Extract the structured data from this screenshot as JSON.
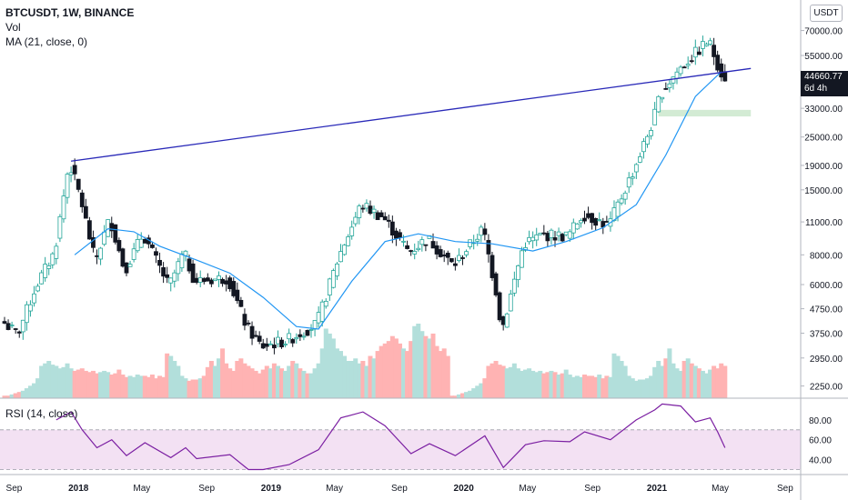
{
  "header": {
    "symbol_line": "BTCUSDT, 1W, BINANCE",
    "vol_label": "Vol",
    "ma_label": "MA (21, close, 0)"
  },
  "currency_button": "USDT",
  "last_price": {
    "value": "44660.77",
    "countdown": "6d 4h"
  },
  "rsi_label": "RSI (14, close)",
  "colors": {
    "up": "#26a69a",
    "down": "#ef5350",
    "ma": "#2196f3",
    "trendline": "#2929b8",
    "rsi": "#7b1fa2",
    "rsi_band": "#f3e1f3",
    "vol_up": "#b2dfdb",
    "vol_down": "#ffb3b3",
    "zone": "#c8e6c9"
  },
  "chart_data": [
    {
      "type": "candlestick",
      "title": "BTCUSDT, 1W, BINANCE",
      "y_scale": "log",
      "ylim": [
        2000,
        90000
      ],
      "price_ticks": [
        "70000.00",
        "55000.00",
        "44660.77",
        "33000.00",
        "25000.00",
        "19000.00",
        "15000.00",
        "11000.00",
        "8000.00",
        "6000.00",
        "4750.00",
        "3750.00",
        "2950.00",
        "2250.00"
      ],
      "time_ticks": [
        "Sep",
        "2018",
        "May",
        "Sep",
        "2019",
        "May",
        "Sep",
        "2020",
        "May",
        "Sep",
        "2021",
        "May",
        "Sep"
      ],
      "xlim": [
        "2017-08-14",
        "2021-09-27"
      ],
      "last_price": 44660.77,
      "moving_average": {
        "label": "MA (21, close, 0)",
        "points": [
          [
            "2017-12-25",
            8000
          ],
          [
            "2018-02-26",
            10300
          ],
          [
            "2018-04-16",
            10000
          ],
          [
            "2018-06-04",
            8700
          ],
          [
            "2018-08-13",
            7600
          ],
          [
            "2018-10-15",
            6700
          ],
          [
            "2018-12-17",
            5300
          ],
          [
            "2019-02-18",
            4000
          ],
          [
            "2019-04-01",
            3900
          ],
          [
            "2019-06-03",
            6200
          ],
          [
            "2019-08-05",
            9100
          ],
          [
            "2019-10-07",
            9800
          ],
          [
            "2019-12-16",
            9100
          ],
          [
            "2020-02-24",
            8900
          ],
          [
            "2020-05-11",
            8300
          ],
          [
            "2020-07-13",
            9100
          ],
          [
            "2020-09-21",
            10400
          ],
          [
            "2020-11-23",
            13000
          ],
          [
            "2021-01-18",
            21000
          ],
          [
            "2021-03-15",
            37000
          ],
          [
            "2021-05-03",
            47000
          ]
        ]
      },
      "trendline": {
        "start": [
          "2017-12-18",
          19800
        ],
        "end": [
          "2021-06-28",
          48500
        ]
      },
      "support_zone": {
        "from": "2021-01-04",
        "to": "2021-06-28",
        "low": 30500,
        "high": 32500
      },
      "price_path": [
        [
          "2017-08-14",
          4200
        ],
        [
          "2017-09-11",
          3700
        ],
        [
          "2017-10-16",
          5900
        ],
        [
          "2017-11-20",
          8200
        ],
        [
          "2017-12-18",
          19600
        ],
        [
          "2018-01-08",
          14000
        ],
        [
          "2018-02-05",
          7500
        ],
        [
          "2018-03-05",
          11400
        ],
        [
          "2018-04-02",
          6900
        ],
        [
          "2018-05-07",
          9800
        ],
        [
          "2018-06-25",
          5900
        ],
        [
          "2018-07-23",
          8200
        ],
        [
          "2018-08-13",
          6200
        ],
        [
          "2018-10-15",
          6400
        ],
        [
          "2018-11-19",
          4000
        ],
        [
          "2018-12-17",
          3300
        ],
        [
          "2019-02-04",
          3500
        ],
        [
          "2019-04-01",
          4100
        ],
        [
          "2019-05-13",
          7900
        ],
        [
          "2019-06-24",
          13000
        ],
        [
          "2019-08-05",
          11500
        ],
        [
          "2019-09-23",
          8200
        ],
        [
          "2019-10-28",
          9400
        ],
        [
          "2019-12-16",
          7200
        ],
        [
          "2020-02-10",
          10300
        ],
        [
          "2020-03-09",
          5200
        ],
        [
          "2020-03-16",
          3800
        ],
        [
          "2020-04-27",
          8900
        ],
        [
          "2020-06-01",
          9700
        ],
        [
          "2020-07-20",
          9600
        ],
        [
          "2020-08-17",
          11900
        ],
        [
          "2020-10-05",
          10600
        ],
        [
          "2020-11-23",
          18500
        ],
        [
          "2020-12-28",
          29000
        ],
        [
          "2021-01-11",
          38000
        ],
        [
          "2021-02-15",
          48000
        ],
        [
          "2021-04-12",
          63500
        ],
        [
          "2021-04-26",
          53000
        ],
        [
          "2021-05-10",
          44660.77
        ]
      ]
    },
    {
      "type": "bar",
      "title": "Vol",
      "series": [
        {
          "name": "Vol",
          "values": [
            2,
            2,
            3,
            4,
            5,
            6,
            8,
            10,
            12,
            16,
            26,
            28,
            30,
            27,
            26,
            24,
            25,
            28,
            24,
            22,
            23,
            24,
            22,
            21,
            22,
            20,
            21,
            22,
            21,
            19,
            20,
            23,
            19,
            17,
            18,
            17,
            19,
            18,
            18,
            17,
            19,
            16,
            18,
            17,
            36,
            34,
            30,
            26,
            18,
            16,
            14,
            15,
            15,
            16,
            18,
            25,
            30,
            26,
            32,
            40,
            28,
            24,
            22,
            30,
            32,
            28,
            26,
            24,
            22,
            20,
            23,
            26,
            24,
            28,
            26,
            24,
            22,
            26,
            30,
            28,
            24,
            22,
            20,
            20,
            24,
            28,
            40,
            56,
            52,
            48,
            40,
            38,
            34,
            30,
            30,
            32,
            28,
            30,
            26,
            34,
            32,
            38,
            42,
            44,
            46,
            50,
            48,
            44,
            40,
            38,
            46,
            58,
            60,
            54,
            50,
            48,
            52,
            42,
            38,
            40,
            34
          ]
        }
      ]
    },
    {
      "type": "line",
      "title": "RSI (14, close)",
      "ylim": [
        25,
        100
      ],
      "y_ticks": [
        80,
        60,
        40
      ],
      "band": [
        30,
        70
      ],
      "series": [
        {
          "name": "RSI",
          "points": [
            [
              "2017-11-20",
              80
            ],
            [
              "2017-12-18",
              88
            ],
            [
              "2018-01-08",
              70
            ],
            [
              "2018-02-05",
              52
            ],
            [
              "2018-03-05",
              60
            ],
            [
              "2018-04-02",
              44
            ],
            [
              "2018-05-07",
              57
            ],
            [
              "2018-06-25",
              42
            ],
            [
              "2018-07-23",
              52
            ],
            [
              "2018-08-13",
              41
            ],
            [
              "2018-10-15",
              45
            ],
            [
              "2018-11-19",
              30
            ],
            [
              "2018-12-17",
              30
            ],
            [
              "2019-02-04",
              35
            ],
            [
              "2019-04-01",
              50
            ],
            [
              "2019-05-13",
              82
            ],
            [
              "2019-06-24",
              88
            ],
            [
              "2019-08-05",
              74
            ],
            [
              "2019-09-23",
              46
            ],
            [
              "2019-10-28",
              56
            ],
            [
              "2019-12-16",
              44
            ],
            [
              "2020-02-10",
              64
            ],
            [
              "2020-03-16",
              32
            ],
            [
              "2020-04-27",
              55
            ],
            [
              "2020-06-01",
              59
            ],
            [
              "2020-07-20",
              58
            ],
            [
              "2020-08-17",
              68
            ],
            [
              "2020-10-05",
              60
            ],
            [
              "2020-11-23",
              80
            ],
            [
              "2020-12-28",
              90
            ],
            [
              "2021-01-11",
              96
            ],
            [
              "2021-02-15",
              94
            ],
            [
              "2021-03-15",
              78
            ],
            [
              "2021-04-12",
              82
            ],
            [
              "2021-04-26",
              68
            ],
            [
              "2021-05-10",
              52
            ]
          ]
        }
      ]
    }
  ]
}
